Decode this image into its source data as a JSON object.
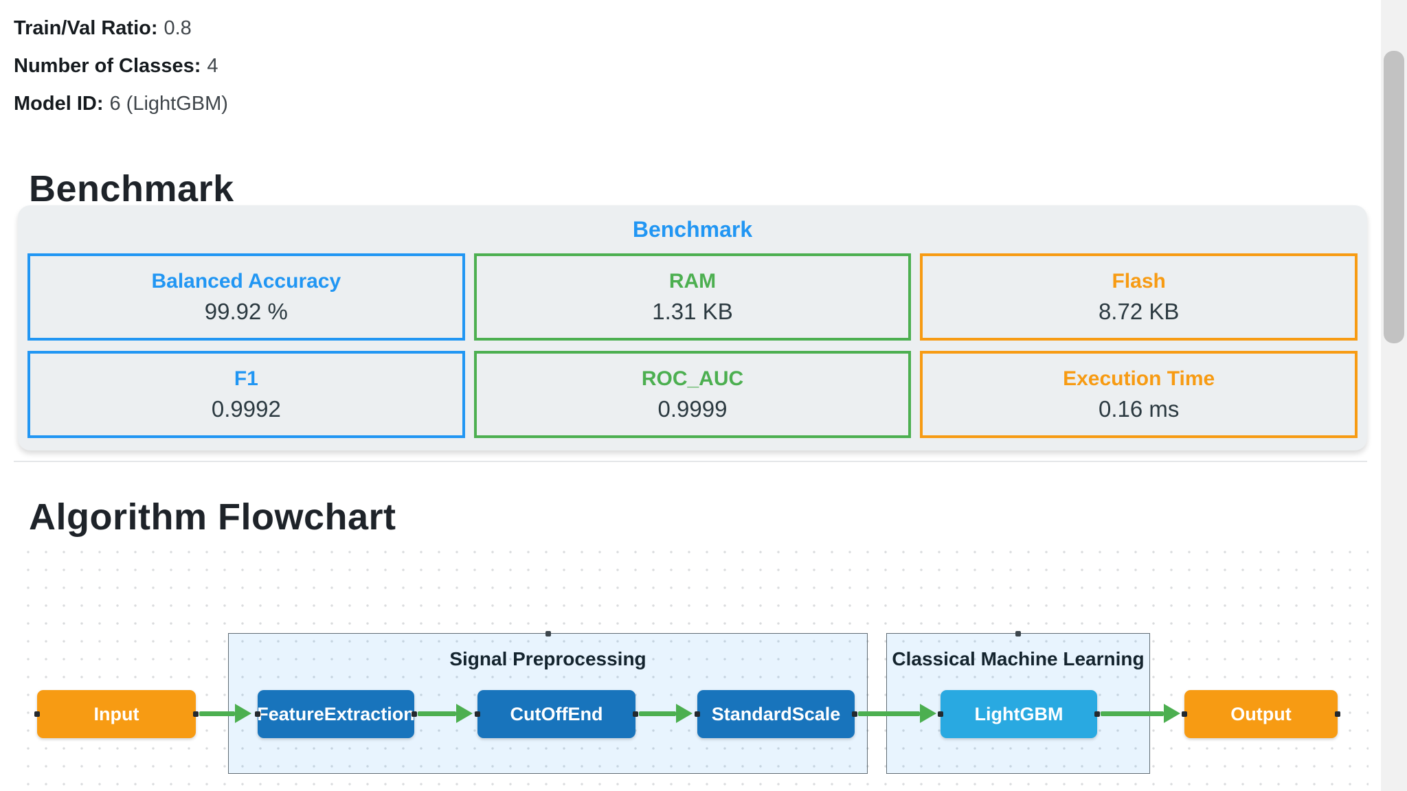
{
  "meta": {
    "items": [
      {
        "label": "Train/Val Ratio:",
        "value": "0.8"
      },
      {
        "label": "Number of Classes:",
        "value": "4"
      },
      {
        "label": "Model ID:",
        "value": "6 (LightGBM)"
      }
    ]
  },
  "benchmark": {
    "heading": "Benchmark",
    "panel_title": "Benchmark",
    "cards": [
      {
        "label": "Balanced Accuracy",
        "value": "99.92 %",
        "color": "#2196f3"
      },
      {
        "label": "RAM",
        "value": "1.31 KB",
        "color": "#4caf50"
      },
      {
        "label": "Flash",
        "value": "8.72 KB",
        "color": "#f79b13"
      },
      {
        "label": "F1",
        "value": "0.9992",
        "color": "#2196f3"
      },
      {
        "label": "ROC_AUC",
        "value": "0.9999",
        "color": "#4caf50"
      },
      {
        "label": "Execution Time",
        "value": "0.16 ms",
        "color": "#f79b13"
      }
    ]
  },
  "flowchart": {
    "heading": "Algorithm Flowchart",
    "groups": [
      {
        "label": "Signal Preprocessing"
      },
      {
        "label": "Classical Machine Learning"
      }
    ],
    "nodes": [
      {
        "label": "Input"
      },
      {
        "label": "FeatureExtraction"
      },
      {
        "label": "CutOffEnd"
      },
      {
        "label": "StandardScale"
      },
      {
        "label": "LightGBM"
      },
      {
        "label": "Output"
      }
    ],
    "edges": [
      {
        "from": "Input",
        "to": "FeatureExtraction"
      },
      {
        "from": "FeatureExtraction",
        "to": "CutOffEnd"
      },
      {
        "from": "CutOffEnd",
        "to": "StandardScale"
      },
      {
        "from": "StandardScale",
        "to": "LightGBM"
      },
      {
        "from": "LightGBM",
        "to": "Output"
      }
    ],
    "edge_color": "#4caf50"
  }
}
